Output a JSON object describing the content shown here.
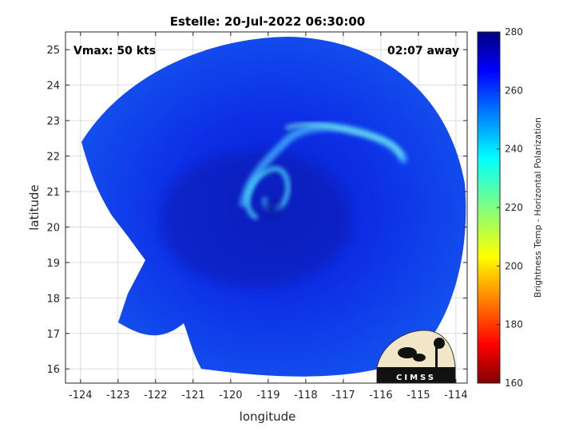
{
  "chart_data": {
    "type": "heatmap",
    "title": "Estelle: 20-Jul-2022 06:30:00",
    "xlabel": "longitude",
    "ylabel": "latitude",
    "xlim": [
      -124.4,
      -113.7
    ],
    "ylim": [
      15.6,
      25.5
    ],
    "xticks": [
      -124,
      -123,
      -122,
      -121,
      -120,
      -119,
      -118,
      -117,
      -116,
      -115,
      -114
    ],
    "yticks": [
      16,
      17,
      18,
      19,
      20,
      21,
      22,
      23,
      24,
      25
    ],
    "grid": true,
    "annotations": {
      "top_left": "Vmax: 50 kts",
      "top_right": "02:07 away"
    },
    "storm_center": {
      "lon": -119.2,
      "lat": 20.5
    },
    "colorbar": {
      "label": "Brightness Temp - Horizontal Polarization",
      "range": [
        160,
        280
      ],
      "ticks": [
        280,
        260,
        240,
        220,
        200,
        180,
        160
      ],
      "colormap": "jet"
    },
    "logo_text": "CIMSS"
  }
}
